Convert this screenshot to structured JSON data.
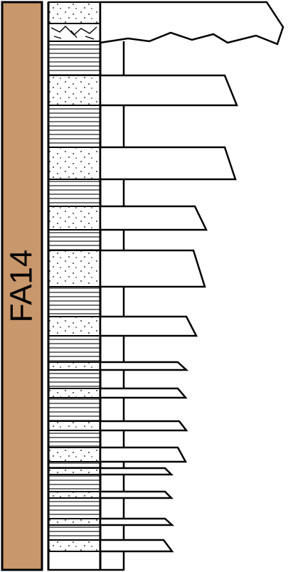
{
  "facies_code": "FA14",
  "colors": {
    "facies_fill": "#C8976B",
    "outline": "#000000",
    "background": "#FFFFFF",
    "sand_dots": "#000000",
    "mud_lines": "#000000"
  },
  "lithology_legend": {
    "dotted": "sandstone",
    "lined": "mudstone",
    "broken": "conglomerate"
  },
  "column": [
    {
      "lith": "dotted"
    },
    {
      "lith": "broken"
    },
    {
      "lith": "lined"
    },
    {
      "lith": "dotted"
    },
    {
      "lith": "lined"
    },
    {
      "lith": "dotted"
    },
    {
      "lith": "lined"
    },
    {
      "lith": "dotted"
    },
    {
      "lith": "lined"
    },
    {
      "lith": "dotted"
    },
    {
      "lith": "lined"
    },
    {
      "lith": "dotted"
    },
    {
      "lith": "lined"
    },
    {
      "lith": "dotted"
    },
    {
      "lith": "lined"
    },
    {
      "lith": "dotted"
    },
    {
      "lith": "lined"
    },
    {
      "lith": "dotted"
    },
    {
      "lith": "lined"
    },
    {
      "lith": "dotted"
    },
    {
      "lith": "lined"
    },
    {
      "lith": "dotted"
    },
    {
      "lith": "lined"
    },
    {
      "lith": "dotted"
    },
    {
      "lith": "lined"
    },
    {
      "lith": "dotted"
    },
    {
      "lith": "lined"
    },
    {
      "lith": "dotted"
    }
  ]
}
